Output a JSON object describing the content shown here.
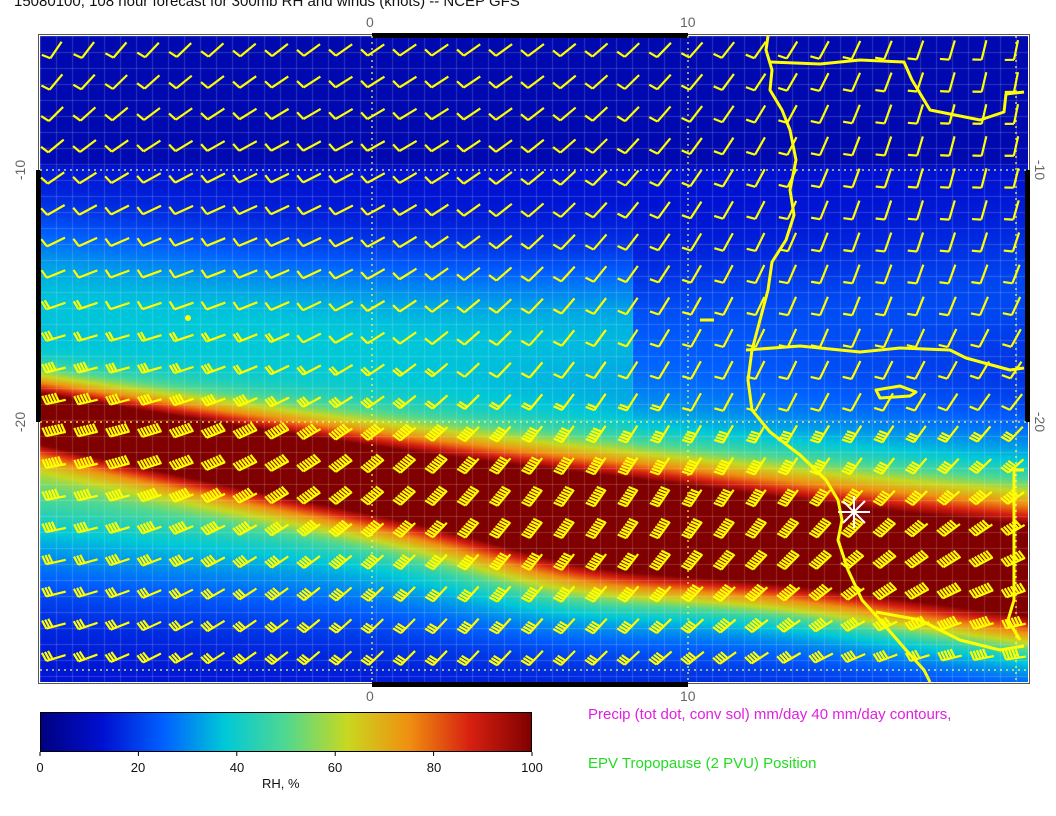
{
  "title": "15080100, 108 hour forecast for 300mb RH and winds (knots) -- NCEP GFS",
  "axes": {
    "top_ticks": [
      "0",
      "10"
    ],
    "bottom_ticks": [
      "0",
      "10"
    ],
    "left_ticks": [
      "-10",
      "-20"
    ],
    "right_ticks": [
      "-10",
      "-20"
    ]
  },
  "colorbar": {
    "label": "RH, %",
    "ticks": [
      "0",
      "20",
      "40",
      "60",
      "80",
      "100"
    ],
    "colors": [
      "#000080",
      "#0010d0",
      "#0060ff",
      "#00c8d8",
      "#50d890",
      "#c8d820",
      "#f09010",
      "#d82010",
      "#800000"
    ]
  },
  "legend": {
    "precip_text": "Precip (tot dot, conv sol) mm/day 40 mm/day contours,",
    "epv_text": "EPV Tropopause (2 PVU) Position"
  },
  "colors": {
    "barbs": "#ffff00",
    "coast": "#ffff00",
    "grid": "#ffff66",
    "marker": "#ffffff"
  },
  "features": {
    "station_marker": "asterisk"
  }
}
